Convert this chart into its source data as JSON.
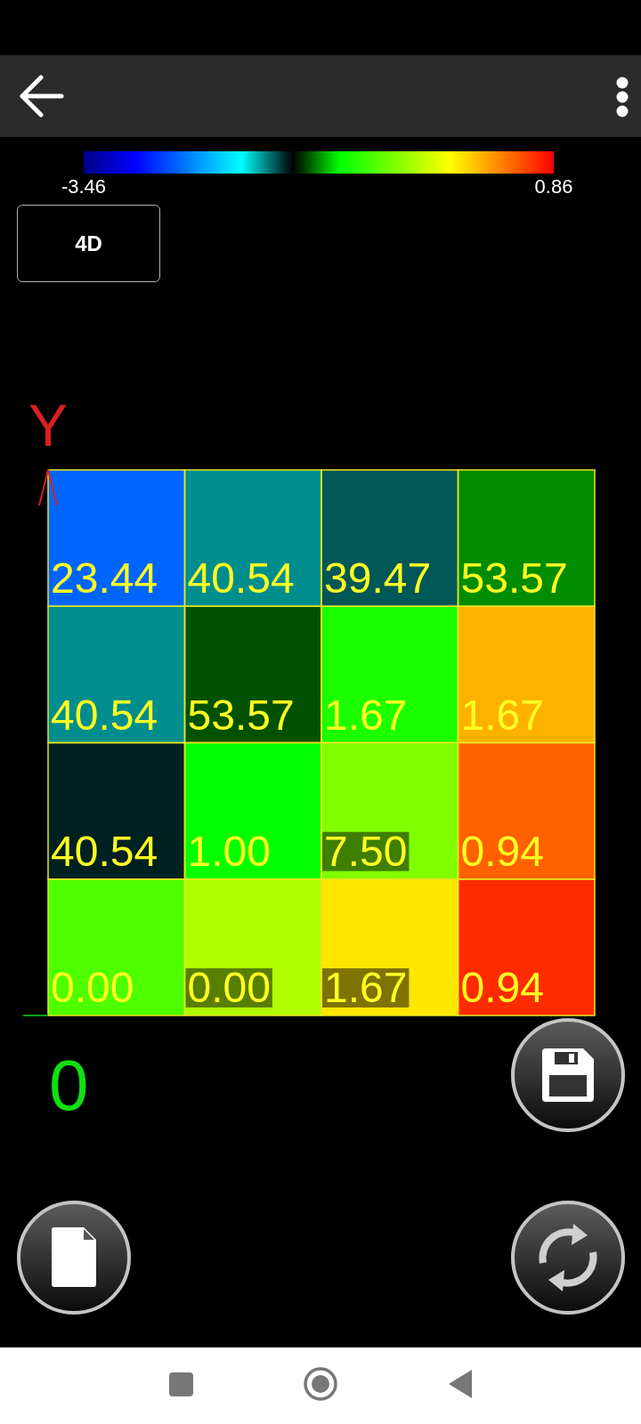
{
  "chart_data": {
    "type": "heatmap",
    "ylabel": "Y",
    "categories": [
      null,
      null,
      null,
      null
    ],
    "y_categories": [
      null,
      null,
      null,
      null
    ],
    "cells": [
      [
        -2.6,
        -1.8,
        -1.7,
        -1.3
      ],
      [
        -1.8,
        -1.4,
        -1.0,
        0.2
      ],
      [
        -1.6,
        -1.1,
        -0.6,
        0.5
      ],
      [
        -0.8,
        -0.4,
        0.0,
        0.7
      ]
    ],
    "clim": [
      -3.46,
      0.86
    ],
    "cticks": [
      -3.46,
      0.86
    ],
    "annotations": [
      "4D",
      "0",
      "23.44",
      "40.54",
      "39.47",
      "53.57",
      "40.54",
      "53.57",
      "1.67",
      "1.67",
      "40.54",
      "1.00",
      "7.50",
      "0.94",
      "0.00",
      "0.00",
      "1.67",
      "0.94"
    ]
  }
}
